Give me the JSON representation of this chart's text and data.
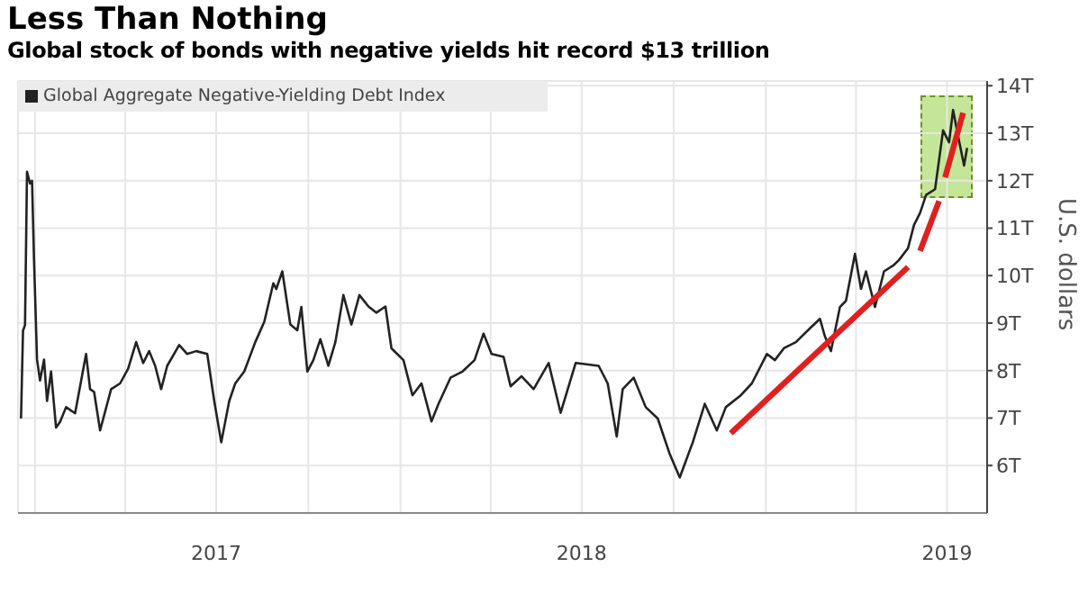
{
  "chart_data": {
    "type": "line",
    "title": "Less Than Nothing",
    "subtitle": "Global stock of bonds with negative yields hit record $13 trillion",
    "ylabel": "U.S. dollars",
    "x": [
      "2016-12-18",
      "2016-12-20",
      "2016-12-22",
      "2016-12-24",
      "2016-12-27",
      "2016-12-29",
      "2016-12-31",
      "2017-01-03",
      "2017-01-06",
      "2017-01-10",
      "2017-01-13",
      "2017-01-17",
      "2017-01-22",
      "2017-01-26",
      "2017-02-01",
      "2017-02-10",
      "2017-02-21",
      "2017-02-25",
      "2017-03-01",
      "2017-03-07",
      "2017-03-18",
      "2017-03-27",
      "2017-04-04",
      "2017-04-12",
      "2017-04-19",
      "2017-04-25",
      "2017-05-01",
      "2017-05-07",
      "2017-05-13",
      "2017-05-25",
      "2017-06-02",
      "2017-06-11",
      "2017-06-22",
      "2017-06-29",
      "2017-07-06",
      "2017-07-14",
      "2017-07-20",
      "2017-07-29",
      "2017-08-09",
      "2017-08-18",
      "2017-08-27",
      "2017-08-30",
      "2017-09-05",
      "2017-09-13",
      "2017-09-20",
      "2017-09-24",
      "2017-09-30",
      "2017-10-06",
      "2017-10-13",
      "2017-10-21",
      "2017-10-28",
      "2017-11-05",
      "2017-11-13",
      "2017-11-21",
      "2017-11-30",
      "2017-12-08",
      "2017-12-17",
      "2017-12-23",
      "2018-01-04",
      "2018-01-13",
      "2018-01-22",
      "2018-02-01",
      "2018-02-08",
      "2018-02-20",
      "2018-03-04",
      "2018-03-16",
      "2018-03-25",
      "2018-04-02",
      "2018-04-14",
      "2018-04-21",
      "2018-05-02",
      "2018-05-14",
      "2018-05-29",
      "2018-06-10",
      "2018-06-25",
      "2018-07-18",
      "2018-07-27",
      "2018-08-05",
      "2018-08-11",
      "2018-08-22",
      "2018-09-03",
      "2018-09-15",
      "2018-09-27",
      "2018-10-07",
      "2018-10-20",
      "2018-11-01",
      "2018-11-13",
      "2018-11-22",
      "2018-12-07",
      "2018-12-18",
      "2019-01-02",
      "2019-01-10",
      "2019-01-19",
      "2019-01-31",
      "2019-02-15",
      "2019-02-24",
      "2019-03-01",
      "2019-03-07",
      "2019-03-16",
      "2019-03-22",
      "2019-03-31",
      "2019-04-06",
      "2019-04-11",
      "2019-04-20",
      "2019-04-29",
      "2019-05-08",
      "2019-05-14",
      "2019-05-23",
      "2019-05-29",
      "2019-06-04",
      "2019-06-10",
      "2019-06-19",
      "2019-06-23",
      "2019-06-27",
      "2019-07-03",
      "2019-07-07",
      "2019-07-12",
      "2019-07-18",
      "2019-07-21"
    ],
    "series": [
      {
        "name": "Global Aggregate Negative-Yielding Debt Index",
        "color": "#222222",
        "values": [
          6.99,
          8.84,
          8.96,
          12.19,
          11.94,
          12.0,
          10.33,
          8.23,
          7.79,
          8.23,
          7.36,
          7.98,
          6.8,
          6.92,
          7.23,
          7.1,
          8.35,
          7.61,
          7.55,
          6.74,
          7.61,
          7.73,
          8.04,
          8.6,
          8.16,
          8.41,
          8.1,
          7.61,
          8.1,
          8.54,
          8.35,
          8.41,
          8.35,
          7.36,
          6.49,
          7.36,
          7.73,
          7.98,
          8.6,
          9.03,
          9.84,
          9.72,
          10.09,
          8.97,
          8.85,
          9.34,
          7.98,
          8.22,
          8.66,
          8.1,
          8.6,
          9.59,
          8.97,
          9.59,
          9.35,
          9.22,
          9.35,
          8.47,
          8.22,
          7.48,
          7.73,
          6.93,
          7.3,
          7.85,
          7.98,
          8.22,
          8.78,
          8.35,
          8.29,
          7.67,
          7.88,
          7.61,
          8.16,
          7.11,
          8.16,
          8.1,
          7.73,
          6.61,
          7.61,
          7.85,
          7.23,
          6.99,
          6.24,
          5.75,
          6.49,
          7.3,
          6.74,
          7.23,
          7.48,
          7.73,
          8.35,
          8.22,
          8.47,
          8.6,
          8.91,
          9.09,
          8.72,
          8.41,
          9.34,
          9.47,
          10.46,
          9.72,
          10.09,
          9.34,
          10.09,
          10.21,
          10.33,
          10.58,
          11.07,
          11.32,
          11.7,
          11.82,
          12.44,
          13.06,
          12.81,
          13.49,
          12.94,
          12.32,
          12.69
        ]
      },
      {
        "type": "line",
        "color": "#e02020",
        "x": [
          "2018-11-27",
          "2019-05-23"
        ],
        "values": [
          6.68,
          10.18
        ]
      },
      {
        "type": "line",
        "color": "#e02020",
        "x": [
          "2019-06-04",
          "2019-06-23"
        ],
        "values": [
          10.52,
          11.57
        ]
      },
      {
        "type": "line",
        "color": "#e02020",
        "x": [
          "2019-06-29",
          "2019-07-17"
        ],
        "values": [
          12.07,
          13.43
        ]
      }
    ],
    "xlim": [
      "2016-12-15",
      "2019-08-10"
    ],
    "xticks": [
      {
        "value": "2017-01-01",
        "label": null
      },
      {
        "value": "2017-04-01",
        "label": null
      },
      {
        "value": "2017-07-01",
        "label": "2017"
      },
      {
        "value": "2017-10-01",
        "label": null
      },
      {
        "value": "2018-01-01",
        "label": null
      },
      {
        "value": "2018-04-01",
        "label": null
      },
      {
        "value": "2018-07-01",
        "label": "2018"
      },
      {
        "value": "2018-10-01",
        "label": null
      },
      {
        "value": "2019-01-01",
        "label": null
      },
      {
        "value": "2019-04-01",
        "label": null
      },
      {
        "value": "2019-07-01",
        "label": "2019"
      }
    ],
    "ylim": [
      5,
      14.1
    ],
    "yticks": [
      {
        "value": 6,
        "label": "6T"
      },
      {
        "value": 7,
        "label": "7T"
      },
      {
        "value": 8,
        "label": "8T"
      },
      {
        "value": 9,
        "label": "9T"
      },
      {
        "value": 10,
        "label": "10T"
      },
      {
        "value": 11,
        "label": "11T"
      },
      {
        "value": 12,
        "label": "12T"
      },
      {
        "value": 13,
        "label": "13T"
      },
      {
        "value": 14,
        "label": "14T"
      }
    ],
    "grid": true,
    "legend": "top left",
    "line_style": "solid",
    "marker": "none"
  }
}
